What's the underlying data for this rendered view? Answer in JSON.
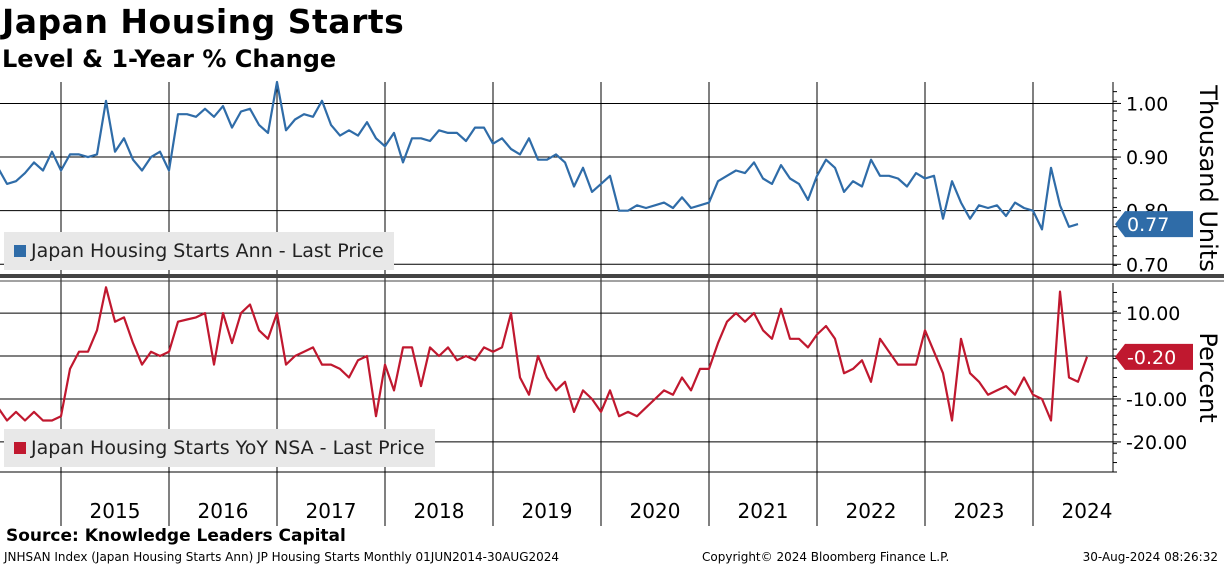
{
  "header": {
    "title": "Japan Housing Starts",
    "subtitle": "Level & 1-Year % Change"
  },
  "source": "Source: Knowledge Leaders Capital",
  "footer": {
    "left": "JNHSAN Index (Japan Housing Starts Ann) JP Housing Starts  Monthly 01JUN2014-30AUG2024",
    "center": "Copyright© 2024 Bloomberg Finance L.P.",
    "right": "30-Aug-2024 08:26:32"
  },
  "colors": {
    "level": "#2f6ca8",
    "yoy": "#c0182f",
    "grid": "#000000"
  },
  "chart_data": [
    {
      "type": "line",
      "name": "upper-panel",
      "legend": "Japan Housing Starts Ann - Last Price",
      "ylabel": "Thousand Units",
      "ylim": [
        0.68,
        1.04
      ],
      "yticks": [
        "1.00",
        "0.90",
        "0.80",
        "0.70"
      ],
      "last_value_label": "0.77",
      "x_start": "2014-06",
      "x_end": "2024-08",
      "frequency": "monthly",
      "values": [
        0.88,
        0.85,
        0.855,
        0.87,
        0.89,
        0.875,
        0.91,
        0.875,
        0.905,
        0.905,
        0.9,
        0.905,
        1.005,
        0.91,
        0.935,
        0.895,
        0.875,
        0.9,
        0.91,
        0.875,
        0.98,
        0.98,
        0.975,
        0.99,
        0.975,
        0.995,
        0.955,
        0.985,
        0.99,
        0.96,
        0.945,
        1.04,
        0.95,
        0.97,
        0.98,
        0.975,
        1.005,
        0.96,
        0.94,
        0.95,
        0.94,
        0.965,
        0.935,
        0.92,
        0.945,
        0.89,
        0.935,
        0.935,
        0.93,
        0.95,
        0.945,
        0.945,
        0.93,
        0.955,
        0.955,
        0.925,
        0.935,
        0.915,
        0.905,
        0.935,
        0.895,
        0.895,
        0.905,
        0.89,
        0.845,
        0.88,
        0.835,
        0.85,
        0.865,
        0.8,
        0.8,
        0.81,
        0.805,
        0.81,
        0.815,
        0.805,
        0.825,
        0.805,
        0.81,
        0.815,
        0.855,
        0.865,
        0.875,
        0.87,
        0.89,
        0.86,
        0.85,
        0.885,
        0.86,
        0.85,
        0.82,
        0.865,
        0.895,
        0.88,
        0.835,
        0.855,
        0.845,
        0.895,
        0.865,
        0.865,
        0.86,
        0.845,
        0.87,
        0.86,
        0.865,
        0.785,
        0.855,
        0.815,
        0.785,
        0.81,
        0.805,
        0.81,
        0.79,
        0.815,
        0.805,
        0.8,
        0.765,
        0.88,
        0.81,
        0.77,
        0.775
      ]
    },
    {
      "type": "line",
      "name": "lower-panel",
      "legend": "Japan Housing Starts YoY NSA - Last Price",
      "ylabel": "Percent",
      "ylim": [
        -27,
        17
      ],
      "yticks": [
        "10.00",
        "0.00",
        "-10.00",
        "-20.00"
      ],
      "last_value_label": "-0.20",
      "x_start": "2014-06",
      "x_end": "2024-08",
      "frequency": "monthly",
      "values": [
        -12,
        -15,
        -13,
        -15,
        -13,
        -15,
        -15,
        -14,
        -3,
        1,
        1,
        6,
        16,
        8,
        9,
        3,
        -2,
        1,
        0,
        1,
        8,
        8.5,
        9,
        10,
        -2,
        10,
        3,
        10,
        12,
        6,
        4,
        10,
        -2,
        0,
        1,
        2,
        -2,
        -2,
        -3,
        -5,
        -1,
        0,
        -14,
        -2,
        -8,
        2,
        2,
        -7,
        2,
        0,
        2,
        -1,
        0,
        -1,
        2,
        1,
        2,
        10,
        -5,
        -9,
        0,
        -5,
        -8,
        -6,
        -13,
        -8,
        -10,
        -13,
        -8,
        -14,
        -13,
        -14,
        -12,
        -10,
        -8,
        -9,
        -5,
        -8,
        -3,
        -3,
        3,
        8,
        10,
        8,
        10,
        6,
        4,
        11,
        4,
        4,
        2,
        5,
        7,
        4,
        -4,
        -3,
        -1,
        -6,
        4,
        1,
        -2,
        -2,
        -2,
        6,
        1,
        -4,
        -15,
        4,
        -4,
        -6,
        -9,
        -8,
        -7,
        -9,
        -5,
        -9,
        -10,
        -15,
        15,
        -5,
        -6,
        -0.2
      ]
    }
  ],
  "x_axis": {
    "years": [
      "2015",
      "2016",
      "2017",
      "2018",
      "2019",
      "2020",
      "2021",
      "2022",
      "2023",
      "2024"
    ]
  }
}
